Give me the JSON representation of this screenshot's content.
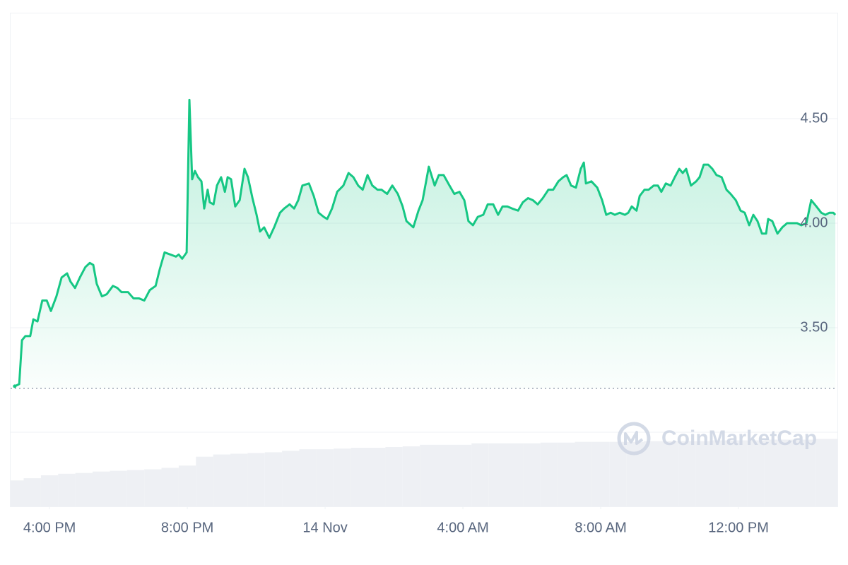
{
  "chart_data": {
    "type": "line",
    "color": "#16c784",
    "down_color": "#ea3943",
    "reference_value": 3.21,
    "grid": true,
    "xlim": [
      14.87,
      38.87
    ],
    "xticks": [
      {
        "value": 16,
        "label": "4:00 PM"
      },
      {
        "value": 20,
        "label": "8:00 PM"
      },
      {
        "value": 24,
        "label": "14 Nov"
      },
      {
        "value": 28,
        "label": "4:00 AM"
      },
      {
        "value": 32,
        "label": "8:00 AM"
      },
      {
        "value": 36,
        "label": "12:00 PM"
      }
    ],
    "ylim": [
      3.0,
      5.0
    ],
    "yticks": [
      {
        "value": 3.5,
        "label": "3.50"
      },
      {
        "value": 4.0,
        "label": "4.00"
      },
      {
        "value": 4.5,
        "label": "4.50"
      }
    ],
    "x": [
      14.99,
      15.12,
      15.2,
      15.3,
      15.44,
      15.53,
      15.65,
      15.79,
      15.92,
      16.04,
      16.2,
      16.35,
      16.51,
      16.61,
      16.74,
      16.88,
      17.04,
      17.17,
      17.27,
      17.37,
      17.52,
      17.66,
      17.84,
      17.97,
      18.09,
      18.28,
      18.44,
      18.6,
      18.75,
      18.91,
      19.08,
      19.2,
      19.34,
      19.51,
      19.67,
      19.75,
      19.85,
      19.98,
      20.06,
      20.14,
      20.22,
      20.31,
      20.41,
      20.49,
      20.59,
      20.65,
      20.76,
      20.86,
      20.98,
      21.09,
      21.17,
      21.27,
      21.39,
      21.52,
      21.66,
      21.76,
      21.89,
      22.01,
      22.11,
      22.23,
      22.38,
      22.52,
      22.69,
      22.81,
      22.97,
      23.1,
      23.22,
      23.34,
      23.53,
      23.67,
      23.81,
      23.96,
      24.06,
      24.2,
      24.35,
      24.53,
      24.68,
      24.82,
      24.96,
      25.09,
      25.23,
      25.37,
      25.52,
      25.64,
      25.8,
      25.95,
      26.11,
      26.25,
      26.36,
      26.56,
      26.71,
      26.83,
      27.01,
      27.18,
      27.3,
      27.44,
      27.61,
      27.75,
      27.9,
      28.04,
      28.16,
      28.29,
      28.43,
      28.59,
      28.72,
      28.88,
      29.02,
      29.15,
      29.29,
      29.43,
      29.6,
      29.74,
      29.89,
      30.03,
      30.17,
      30.32,
      30.48,
      30.62,
      30.77,
      30.91,
      31.01,
      31.14,
      31.28,
      31.42,
      31.51,
      31.57,
      31.73,
      31.9,
      32.04,
      32.16,
      32.29,
      32.41,
      32.55,
      32.7,
      32.8,
      32.9,
      33.04,
      33.13,
      33.27,
      33.39,
      33.54,
      33.66,
      33.76,
      33.89,
      34.03,
      34.15,
      34.28,
      34.38,
      34.48,
      34.62,
      34.77,
      34.87,
      34.99,
      35.12,
      35.24,
      35.36,
      35.51,
      35.65,
      35.77,
      35.92,
      36.06,
      36.18,
      36.31,
      36.43,
      36.55,
      36.68,
      36.8,
      36.86,
      36.98,
      37.13,
      37.27,
      37.41,
      37.56,
      37.7,
      37.82,
      37.97,
      38.11,
      38.26,
      38.4,
      38.52,
      38.64,
      38.75,
      38.81
    ],
    "values": [
      3.22,
      3.23,
      3.44,
      3.46,
      3.46,
      3.54,
      3.53,
      3.63,
      3.63,
      3.58,
      3.65,
      3.74,
      3.76,
      3.72,
      3.69,
      3.74,
      3.79,
      3.81,
      3.8,
      3.71,
      3.65,
      3.66,
      3.7,
      3.69,
      3.67,
      3.67,
      3.64,
      3.64,
      3.63,
      3.68,
      3.7,
      3.78,
      3.86,
      3.85,
      3.84,
      3.85,
      3.83,
      3.86,
      4.59,
      4.21,
      4.25,
      4.22,
      4.2,
      4.07,
      4.16,
      4.1,
      4.09,
      4.18,
      4.22,
      4.15,
      4.22,
      4.21,
      4.08,
      4.11,
      4.26,
      4.22,
      4.12,
      4.04,
      3.96,
      3.98,
      3.93,
      3.98,
      4.05,
      4.07,
      4.09,
      4.07,
      4.11,
      4.18,
      4.19,
      4.13,
      4.05,
      4.03,
      4.02,
      4.07,
      4.15,
      4.18,
      4.24,
      4.22,
      4.18,
      4.16,
      4.23,
      4.18,
      4.16,
      4.16,
      4.14,
      4.18,
      4.14,
      4.08,
      4.01,
      3.98,
      4.06,
      4.11,
      4.27,
      4.18,
      4.23,
      4.23,
      4.18,
      4.14,
      4.15,
      4.11,
      4.01,
      3.99,
      4.03,
      4.04,
      4.09,
      4.09,
      4.04,
      4.08,
      4.08,
      4.07,
      4.06,
      4.1,
      4.12,
      4.11,
      4.09,
      4.12,
      4.16,
      4.16,
      4.2,
      4.22,
      4.23,
      4.18,
      4.17,
      4.26,
      4.29,
      4.19,
      4.2,
      4.17,
      4.11,
      4.04,
      4.05,
      4.04,
      4.05,
      4.04,
      4.05,
      4.08,
      4.06,
      4.13,
      4.16,
      4.16,
      4.18,
      4.18,
      4.15,
      4.19,
      4.18,
      4.22,
      4.26,
      4.24,
      4.26,
      4.18,
      4.2,
      4.22,
      4.28,
      4.28,
      4.26,
      4.23,
      4.22,
      4.16,
      4.14,
      4.11,
      4.06,
      4.05,
      3.99,
      4.04,
      4.01,
      3.95,
      3.95,
      4.02,
      4.01,
      3.95,
      3.98,
      4.0,
      4.0,
      4.0,
      3.99,
      4.0,
      4.11,
      4.08,
      4.05,
      4.04,
      4.05,
      4.05,
      4.04
    ],
    "volume": {
      "color": "#eef0f4",
      "ylim": [
        0,
        100
      ],
      "x": [
        15.0,
        15.5,
        16.0,
        16.5,
        17.0,
        17.5,
        18.0,
        18.5,
        19.0,
        19.5,
        20.0,
        20.5,
        21.0,
        21.5,
        22.0,
        22.5,
        23.0,
        23.5,
        24.0,
        24.5,
        25.0,
        25.5,
        26.0,
        26.5,
        27.0,
        27.5,
        28.0,
        28.5,
        29.0,
        29.5,
        30.0,
        30.5,
        31.0,
        31.5,
        32.0,
        32.5,
        33.0,
        33.5,
        34.0,
        34.5,
        35.0,
        35.5,
        36.0,
        36.5,
        37.0,
        37.5,
        38.0,
        38.5
      ],
      "values": [
        35,
        38,
        42,
        44,
        45,
        47,
        48,
        49,
        50,
        52,
        55,
        67,
        70,
        71,
        72,
        73,
        75,
        77,
        77,
        78,
        79,
        79,
        80,
        81,
        83,
        83,
        83,
        85,
        85,
        85,
        85,
        86,
        86,
        87,
        87,
        87,
        87,
        88,
        88,
        88,
        88,
        89,
        89,
        89,
        90,
        90,
        90,
        91
      ]
    },
    "watermark": "CoinMarketCap"
  }
}
